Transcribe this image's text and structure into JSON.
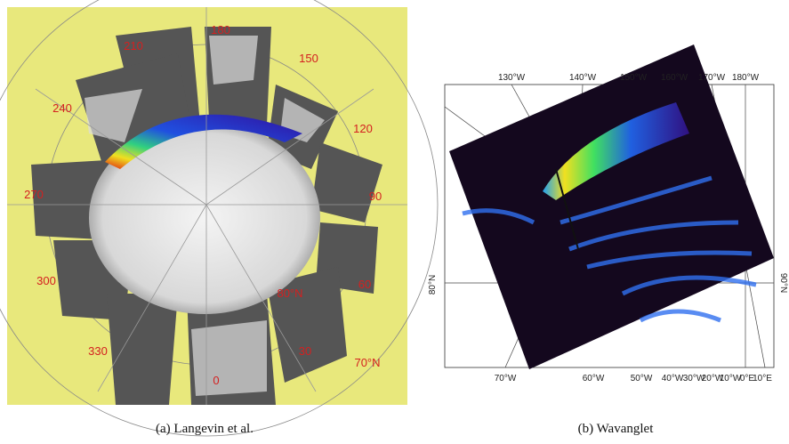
{
  "panels": [
    {
      "labels": [
        "180",
        "150",
        "120",
        "90",
        "60",
        "30",
        "0",
        "330",
        "300",
        "270",
        "240",
        "210",
        "80°N",
        "70°N"
      ],
      "caption": "(a)  Langevin et al."
    },
    {
      "top_labels": [
        "130°W",
        "140°W",
        "150°W",
        "160°W",
        "170°W",
        "180°W"
      ],
      "bottom_labels": [
        "70°W",
        "60°W",
        "50°W",
        "40°W",
        "30°W",
        "20°W",
        "10°W",
        "0°E",
        "10°E"
      ],
      "left_label": "80°N",
      "right_label": "90°N",
      "caption": "(b)  Wavanglet"
    }
  ]
}
